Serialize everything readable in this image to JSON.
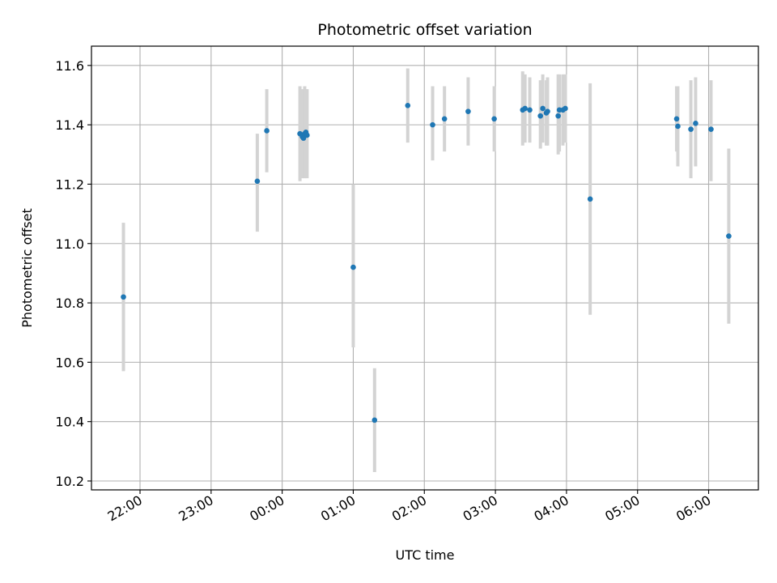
{
  "chart_data": {
    "type": "scatter",
    "title": "Photometric offset variation",
    "xlabel": "UTC time",
    "ylabel": "Photometric offset",
    "x_is_time": true,
    "xlim": [
      "21:19",
      "06:42"
    ],
    "ylim": [
      10.17,
      11.665
    ],
    "x_ticks": [
      "22:00",
      "23:00",
      "00:00",
      "01:00",
      "02:00",
      "03:00",
      "04:00",
      "05:00",
      "06:00"
    ],
    "y_ticks": [
      10.2,
      10.4,
      10.6,
      10.8,
      11.0,
      11.2,
      11.4,
      11.6
    ],
    "y_tick_labels": [
      "10.2",
      "10.4",
      "10.6",
      "10.8",
      "11.0",
      "11.2",
      "11.4",
      "11.6"
    ],
    "grid": true,
    "marker_color": "#1f77b4",
    "errorbar_color": "#d3d3d3",
    "points": [
      {
        "t": "21:46",
        "y": 10.82,
        "lo": 10.57,
        "hi": 11.07
      },
      {
        "t": "23:39",
        "y": 11.21,
        "lo": 11.04,
        "hi": 11.37
      },
      {
        "t": "23:47",
        "y": 11.38,
        "lo": 11.24,
        "hi": 11.52
      },
      {
        "t": "00:15",
        "y": 11.37,
        "lo": 11.21,
        "hi": 11.53
      },
      {
        "t": "00:17",
        "y": 11.36,
        "lo": 11.22,
        "hi": 11.52
      },
      {
        "t": "00:18",
        "y": 11.355,
        "lo": 11.23,
        "hi": 11.48
      },
      {
        "t": "00:19",
        "y": 11.37,
        "lo": 11.22,
        "hi": 11.53
      },
      {
        "t": "00:20",
        "y": 11.375,
        "lo": 11.23,
        "hi": 11.52
      },
      {
        "t": "00:21",
        "y": 11.365,
        "lo": 11.22,
        "hi": 11.52
      },
      {
        "t": "01:00",
        "y": 10.92,
        "lo": 10.65,
        "hi": 11.2
      },
      {
        "t": "01:18",
        "y": 10.405,
        "lo": 10.23,
        "hi": 10.58
      },
      {
        "t": "01:46",
        "y": 11.465,
        "lo": 11.34,
        "hi": 11.59
      },
      {
        "t": "02:07",
        "y": 11.4,
        "lo": 11.28,
        "hi": 11.53
      },
      {
        "t": "02:17",
        "y": 11.42,
        "lo": 11.31,
        "hi": 11.53
      },
      {
        "t": "02:37",
        "y": 11.445,
        "lo": 11.33,
        "hi": 11.56
      },
      {
        "t": "02:59",
        "y": 11.42,
        "lo": 11.31,
        "hi": 11.53
      },
      {
        "t": "03:23",
        "y": 11.45,
        "lo": 11.33,
        "hi": 11.58
      },
      {
        "t": "03:25",
        "y": 11.455,
        "lo": 11.34,
        "hi": 11.57
      },
      {
        "t": "03:29",
        "y": 11.45,
        "lo": 11.34,
        "hi": 11.56
      },
      {
        "t": "03:38",
        "y": 11.43,
        "lo": 11.32,
        "hi": 11.55
      },
      {
        "t": "03:40",
        "y": 11.455,
        "lo": 11.34,
        "hi": 11.57
      },
      {
        "t": "03:43",
        "y": 11.44,
        "lo": 11.33,
        "hi": 11.55
      },
      {
        "t": "03:44",
        "y": 11.445,
        "lo": 11.33,
        "hi": 11.56
      },
      {
        "t": "03:53",
        "y": 11.43,
        "lo": 11.3,
        "hi": 11.57
      },
      {
        "t": "03:54",
        "y": 11.45,
        "lo": 11.31,
        "hi": 11.57
      },
      {
        "t": "03:57",
        "y": 11.45,
        "lo": 11.33,
        "hi": 11.57
      },
      {
        "t": "03:59",
        "y": 11.455,
        "lo": 11.34,
        "hi": 11.57
      },
      {
        "t": "04:20",
        "y": 11.15,
        "lo": 10.76,
        "hi": 11.54
      },
      {
        "t": "05:33",
        "y": 11.42,
        "lo": 11.31,
        "hi": 11.53
      },
      {
        "t": "05:34",
        "y": 11.395,
        "lo": 11.26,
        "hi": 11.53
      },
      {
        "t": "05:45",
        "y": 11.385,
        "lo": 11.22,
        "hi": 11.55
      },
      {
        "t": "05:49",
        "y": 11.405,
        "lo": 11.26,
        "hi": 11.56
      },
      {
        "t": "06:02",
        "y": 11.385,
        "lo": 11.21,
        "hi": 11.55
      },
      {
        "t": "06:17",
        "y": 11.025,
        "lo": 10.73,
        "hi": 11.32
      }
    ]
  }
}
